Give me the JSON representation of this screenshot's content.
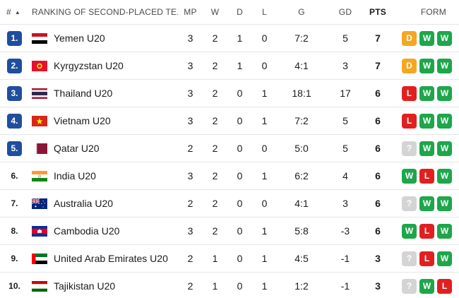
{
  "header": {
    "rank": "#",
    "team": "RANKING OF SECOND-PLACED TE...",
    "mp": "MP",
    "w": "W",
    "d": "D",
    "l": "L",
    "g": "G",
    "gd": "GD",
    "pts": "PTS",
    "form": "FORM"
  },
  "colors": {
    "qualified_badge": "#1f4e9e",
    "win": "#1ea64b",
    "draw": "#f5a623",
    "loss": "#e02020",
    "unknown": "#d4d4d4"
  },
  "rows": [
    {
      "rank": "1.",
      "qualified": true,
      "flag": "yemen",
      "team": "Yemen U20",
      "mp": "3",
      "w": "2",
      "d": "1",
      "l": "0",
      "g": "7:2",
      "gd": "5",
      "pts": "7",
      "form": [
        "D",
        "W",
        "W"
      ]
    },
    {
      "rank": "2.",
      "qualified": true,
      "flag": "kyrgyzstan",
      "team": "Kyrgyzstan U20",
      "mp": "3",
      "w": "2",
      "d": "1",
      "l": "0",
      "g": "4:1",
      "gd": "3",
      "pts": "7",
      "form": [
        "D",
        "W",
        "W"
      ]
    },
    {
      "rank": "3.",
      "qualified": true,
      "flag": "thailand",
      "team": "Thailand U20",
      "mp": "3",
      "w": "2",
      "d": "0",
      "l": "1",
      "g": "18:1",
      "gd": "17",
      "pts": "6",
      "form": [
        "L",
        "W",
        "W"
      ]
    },
    {
      "rank": "4.",
      "qualified": true,
      "flag": "vietnam",
      "team": "Vietnam U20",
      "mp": "3",
      "w": "2",
      "d": "0",
      "l": "1",
      "g": "7:2",
      "gd": "5",
      "pts": "6",
      "form": [
        "L",
        "W",
        "W"
      ]
    },
    {
      "rank": "5.",
      "qualified": true,
      "flag": "qatar",
      "team": "Qatar U20",
      "mp": "2",
      "w": "2",
      "d": "0",
      "l": "0",
      "g": "5:0",
      "gd": "5",
      "pts": "6",
      "form": [
        "?",
        "W",
        "W"
      ]
    },
    {
      "rank": "6.",
      "qualified": false,
      "flag": "india",
      "team": "India U20",
      "mp": "3",
      "w": "2",
      "d": "0",
      "l": "1",
      "g": "6:2",
      "gd": "4",
      "pts": "6",
      "form": [
        "W",
        "L",
        "W"
      ]
    },
    {
      "rank": "7.",
      "qualified": false,
      "flag": "australia",
      "team": "Australia U20",
      "mp": "2",
      "w": "2",
      "d": "0",
      "l": "0",
      "g": "4:1",
      "gd": "3",
      "pts": "6",
      "form": [
        "?",
        "W",
        "W"
      ]
    },
    {
      "rank": "8.",
      "qualified": false,
      "flag": "cambodia",
      "team": "Cambodia U20",
      "mp": "3",
      "w": "2",
      "d": "0",
      "l": "1",
      "g": "5:8",
      "gd": "-3",
      "pts": "6",
      "form": [
        "W",
        "L",
        "W"
      ]
    },
    {
      "rank": "9.",
      "qualified": false,
      "flag": "uae",
      "team": "United Arab Emirates U20",
      "mp": "2",
      "w": "1",
      "d": "0",
      "l": "1",
      "g": "4:5",
      "gd": "-1",
      "pts": "3",
      "form": [
        "?",
        "L",
        "W"
      ]
    },
    {
      "rank": "10.",
      "qualified": false,
      "flag": "tajikistan",
      "team": "Tajikistan U20",
      "mp": "2",
      "w": "1",
      "d": "0",
      "l": "1",
      "g": "1:2",
      "gd": "-1",
      "pts": "3",
      "form": [
        "?",
        "W",
        "L"
      ]
    }
  ]
}
